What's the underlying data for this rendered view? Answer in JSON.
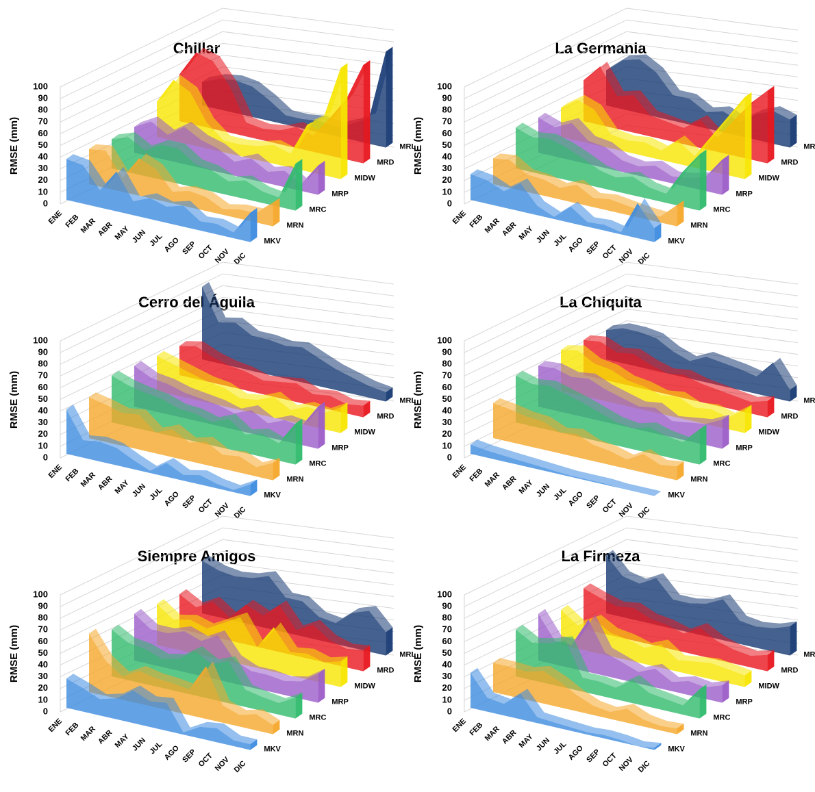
{
  "chart_data": [
    {
      "type": "area3d",
      "title": "Chillar",
      "y_label": "RMSE (mm)",
      "categories": [
        "ENE",
        "FEB",
        "MAR",
        "ABR",
        "MAY",
        "JUN",
        "JUL",
        "AGO",
        "SEP",
        "OCT",
        "NOV",
        "DIC"
      ],
      "ylim": [
        0,
        100
      ],
      "yticks": [
        0,
        10,
        20,
        30,
        40,
        50,
        60,
        70,
        80,
        90,
        100
      ],
      "series": [
        {
          "name": "MKV",
          "color": "#3d8be0",
          "values": [
            35,
            33,
            15,
            34,
            12,
            18,
            14,
            18,
            8,
            9,
            5,
            25
          ]
        },
        {
          "name": "MRN",
          "color": "#f5a72a",
          "values": [
            30,
            32,
            12,
            32,
            26,
            10,
            14,
            12,
            5,
            8,
            8,
            20
          ]
        },
        {
          "name": "MRC",
          "color": "#2fba6c",
          "values": [
            25,
            30,
            22,
            30,
            30,
            20,
            18,
            12,
            16,
            10,
            8,
            40
          ]
        },
        {
          "name": "MRP",
          "color": "#9b5cc8",
          "values": [
            22,
            30,
            22,
            32,
            24,
            20,
            12,
            18,
            10,
            14,
            6,
            25
          ]
        },
        {
          "name": "MIDW",
          "color": "#f7e600",
          "values": [
            30,
            52,
            45,
            22,
            10,
            10,
            12,
            16,
            12,
            40,
            50,
            95
          ]
        },
        {
          "name": "MRD",
          "color": "#e8161e",
          "values": [
            40,
            62,
            58,
            40,
            12,
            10,
            12,
            18,
            14,
            32,
            52,
            84
          ]
        },
        {
          "name": "MRL",
          "color": "#173a73",
          "values": [
            20,
            26,
            28,
            26,
            18,
            8,
            8,
            10,
            8,
            14,
            22,
            82
          ]
        }
      ]
    },
    {
      "type": "area3d",
      "title": "La Germania",
      "y_label": "RMSE (mm)",
      "categories": [
        "ENE",
        "FEB",
        "MAR",
        "ABR",
        "MAY",
        "JUN",
        "JUL",
        "AGO",
        "SEP",
        "OCT",
        "NOV",
        "DIC"
      ],
      "ylim": [
        0,
        100
      ],
      "yticks": [
        0,
        10,
        20,
        30,
        40,
        50,
        60,
        70,
        80,
        90,
        100
      ],
      "series": [
        {
          "name": "MKV",
          "color": "#3d8be0",
          "values": [
            22,
            20,
            14,
            24,
            8,
            2,
            14,
            4,
            5,
            2,
            30,
            12
          ]
        },
        {
          "name": "MRN",
          "color": "#f5a72a",
          "values": [
            22,
            24,
            15,
            14,
            10,
            16,
            8,
            10,
            8,
            6,
            5,
            18
          ]
        },
        {
          "name": "MRC",
          "color": "#2fba6c",
          "values": [
            35,
            30,
            32,
            28,
            22,
            15,
            12,
            16,
            10,
            8,
            30,
            48
          ]
        },
        {
          "name": "MRP",
          "color": "#9b5cc8",
          "values": [
            30,
            25,
            32,
            20,
            18,
            10,
            8,
            12,
            6,
            8,
            12,
            30
          ]
        },
        {
          "name": "MIDW",
          "color": "#f7e600",
          "values": [
            25,
            35,
            30,
            12,
            10,
            12,
            8,
            20,
            10,
            30,
            50,
            70
          ]
        },
        {
          "name": "MRD",
          "color": "#e8161e",
          "values": [
            35,
            50,
            28,
            32,
            18,
            16,
            14,
            24,
            12,
            30,
            48,
            62
          ]
        },
        {
          "name": "MRL",
          "color": "#173a73",
          "values": [
            30,
            42,
            46,
            38,
            22,
            22,
            14,
            18,
            12,
            22,
            28,
            24
          ]
        }
      ]
    },
    {
      "type": "area3d",
      "title": "Cerro del Águila",
      "y_label": "RMSE (mm)",
      "categories": [
        "ENE",
        "FEB",
        "MAR",
        "ABR",
        "MAY",
        "JUN",
        "JUL",
        "AGO",
        "SEP",
        "OCT",
        "NOV",
        "DIC"
      ],
      "ylim": [
        0,
        100
      ],
      "yticks": [
        0,
        10,
        20,
        30,
        40,
        50,
        60,
        70,
        80,
        90,
        100
      ],
      "series": [
        {
          "name": "MKV",
          "color": "#3d8be0",
          "values": [
            38,
            15,
            17,
            15,
            8,
            2,
            12,
            5,
            8,
            4,
            2,
            10
          ]
        },
        {
          "name": "MRN",
          "color": "#f5a72a",
          "values": [
            35,
            32,
            28,
            30,
            18,
            24,
            16,
            20,
            12,
            14,
            8,
            15
          ]
        },
        {
          "name": "MRC",
          "color": "#2fba6c",
          "values": [
            40,
            35,
            32,
            30,
            25,
            24,
            20,
            26,
            16,
            20,
            15,
            35
          ]
        },
        {
          "name": "MRP",
          "color": "#9b5cc8",
          "values": [
            35,
            28,
            26,
            22,
            20,
            18,
            14,
            20,
            12,
            18,
            16,
            36
          ]
        },
        {
          "name": "MIDW",
          "color": "#f7e600",
          "values": [
            30,
            26,
            22,
            18,
            16,
            10,
            12,
            18,
            10,
            16,
            14,
            22
          ]
        },
        {
          "name": "MRD",
          "color": "#e8161e",
          "values": [
            25,
            28,
            22,
            18,
            16,
            12,
            14,
            16,
            10,
            12,
            8,
            10
          ]
        },
        {
          "name": "MRL",
          "color": "#173a73",
          "values": [
            62,
            35,
            38,
            30,
            30,
            28,
            30,
            24,
            18,
            14,
            10,
            8
          ]
        }
      ]
    },
    {
      "type": "area3d",
      "title": "La Chiquita",
      "y_label": "RMSE (mm)",
      "categories": [
        "ENE",
        "FEB",
        "MAR",
        "ABR",
        "MAY",
        "JUN",
        "JUL",
        "AGO",
        "SEP",
        "OCT",
        "NOV",
        "DIC"
      ],
      "ylim": [
        0,
        100
      ],
      "yticks": [
        0,
        10,
        20,
        30,
        40,
        50,
        60,
        70,
        80,
        90,
        100
      ],
      "series": [
        {
          "name": "MKV",
          "color": "#3d8be0",
          "values": [
            8,
            6,
            5,
            4,
            3,
            2,
            1,
            1,
            1,
            0,
            0,
            0
          ]
        },
        {
          "name": "MRN",
          "color": "#f5a72a",
          "values": [
            30,
            28,
            25,
            24,
            18,
            20,
            14,
            12,
            8,
            16,
            10,
            12
          ]
        },
        {
          "name": "MRC",
          "color": "#2fba6c",
          "values": [
            40,
            36,
            38,
            34,
            30,
            25,
            20,
            18,
            22,
            18,
            16,
            30
          ]
        },
        {
          "name": "MRP",
          "color": "#9b5cc8",
          "values": [
            35,
            36,
            32,
            34,
            28,
            24,
            20,
            22,
            14,
            16,
            18,
            25
          ]
        },
        {
          "name": "MIDW",
          "color": "#f7e600",
          "values": [
            35,
            38,
            30,
            28,
            22,
            20,
            16,
            18,
            12,
            14,
            10,
            20
          ]
        },
        {
          "name": "MRD",
          "color": "#e8161e",
          "values": [
            30,
            32,
            26,
            28,
            22,
            18,
            20,
            16,
            14,
            12,
            10,
            14
          ]
        },
        {
          "name": "MRL",
          "color": "#173a73",
          "values": [
            25,
            30,
            30,
            28,
            20,
            15,
            22,
            20,
            18,
            15,
            30,
            10
          ]
        }
      ]
    },
    {
      "type": "area3d",
      "title": "Siempre Amigos",
      "y_label": "RMSE (mm)",
      "categories": [
        "ENE",
        "FEB",
        "MAR",
        "ABR",
        "MAY",
        "JUN",
        "JUL",
        "AGO",
        "SEP",
        "OCT",
        "NOV",
        "DIC"
      ],
      "ylim": [
        0,
        100
      ],
      "yticks": [
        0,
        10,
        20,
        30,
        40,
        50,
        60,
        70,
        80,
        90,
        100
      ],
      "series": [
        {
          "name": "MKV",
          "color": "#3d8be0",
          "values": [
            25,
            20,
            14,
            18,
            28,
            22,
            24,
            2,
            10,
            12,
            5,
            5
          ]
        },
        {
          "name": "MRN",
          "color": "#f5a72a",
          "values": [
            50,
            30,
            20,
            28,
            25,
            24,
            22,
            45,
            15,
            10,
            14,
            8
          ]
        },
        {
          "name": "MRC",
          "color": "#2fba6c",
          "values": [
            40,
            32,
            30,
            25,
            28,
            38,
            30,
            36,
            15,
            12,
            10,
            18
          ]
        },
        {
          "name": "MRP",
          "color": "#9b5cc8",
          "values": [
            40,
            30,
            30,
            35,
            30,
            38,
            20,
            14,
            14,
            12,
            15,
            25
          ]
        },
        {
          "name": "MIDW",
          "color": "#f7e600",
          "values": [
            35,
            25,
            28,
            24,
            32,
            40,
            18,
            38,
            20,
            22,
            18,
            22
          ]
        },
        {
          "name": "MRD",
          "color": "#e8161e",
          "values": [
            30,
            22,
            30,
            20,
            34,
            28,
            40,
            22,
            30,
            20,
            16,
            18
          ]
        },
        {
          "name": "MRL",
          "color": "#173a73",
          "values": [
            45,
            40,
            38,
            40,
            45,
            30,
            30,
            20,
            18,
            30,
            35,
            20
          ]
        }
      ]
    },
    {
      "type": "area3d",
      "title": "La Firmeza",
      "y_label": "RMSE (mm)",
      "categories": [
        "ENE",
        "FEB",
        "MAR",
        "ABR",
        "MAY",
        "JUN",
        "JUL",
        "AGO",
        "SEP",
        "OCT",
        "NOV",
        "DIC"
      ],
      "ylim": [
        0,
        100
      ],
      "yticks": [
        0,
        10,
        20,
        30,
        40,
        50,
        60,
        70,
        80,
        90,
        100
      ],
      "series": [
        {
          "name": "MKV",
          "color": "#3d8be0",
          "values": [
            30,
            12,
            10,
            22,
            5,
            4,
            3,
            2,
            3,
            2,
            0,
            2
          ]
        },
        {
          "name": "MRN",
          "color": "#f5a72a",
          "values": [
            25,
            25,
            24,
            28,
            22,
            14,
            8,
            6,
            12,
            6,
            4,
            5
          ]
        },
        {
          "name": "MRC",
          "color": "#2fba6c",
          "values": [
            40,
            32,
            35,
            40,
            12,
            12,
            10,
            20,
            12,
            10,
            8,
            25
          ]
        },
        {
          "name": "MRP",
          "color": "#9b5cc8",
          "values": [
            40,
            20,
            20,
            45,
            20,
            15,
            10,
            16,
            8,
            12,
            10,
            15
          ]
        },
        {
          "name": "MIDW",
          "color": "#f7e600",
          "values": [
            30,
            20,
            28,
            20,
            18,
            14,
            20,
            10,
            12,
            14,
            12,
            10
          ]
        },
        {
          "name": "MRD",
          "color": "#e8161e",
          "values": [
            35,
            30,
            26,
            28,
            22,
            20,
            16,
            24,
            16,
            12,
            10,
            14
          ]
        },
        {
          "name": "MRL",
          "color": "#173a73",
          "values": [
            50,
            35,
            32,
            40,
            25,
            25,
            28,
            35,
            20,
            18,
            20,
            25
          ]
        }
      ]
    }
  ]
}
